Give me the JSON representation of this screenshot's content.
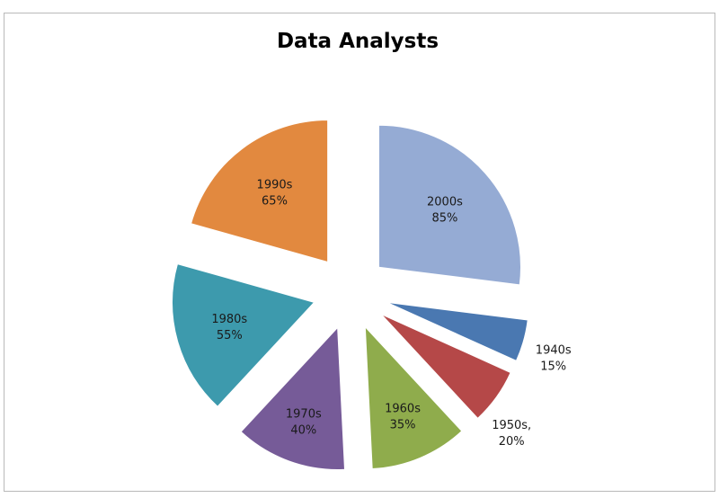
{
  "chart_data": {
    "type": "pie",
    "title": "Data Analysts",
    "exploded": true,
    "slices": [
      {
        "category": "2000s",
        "value": 85,
        "value_label": "85%",
        "color": "#95abd4"
      },
      {
        "category": "1940s",
        "value": 15,
        "value_label": "15%",
        "color": "#4a78b1"
      },
      {
        "category": "1950s,",
        "value": 20,
        "value_label": "20%",
        "color": "#b54848"
      },
      {
        "category": "1960s",
        "value": 35,
        "value_label": "35%",
        "color": "#8fac4c"
      },
      {
        "category": "1970s",
        "value": 40,
        "value_label": "40%",
        "color": "#765b98"
      },
      {
        "category": "1980s",
        "value": 55,
        "value_label": "55%",
        "color": "#3d9aad"
      },
      {
        "category": "1990s",
        "value": 65,
        "value_label": "65%",
        "color": "#e2893f"
      }
    ],
    "legend": "none"
  }
}
